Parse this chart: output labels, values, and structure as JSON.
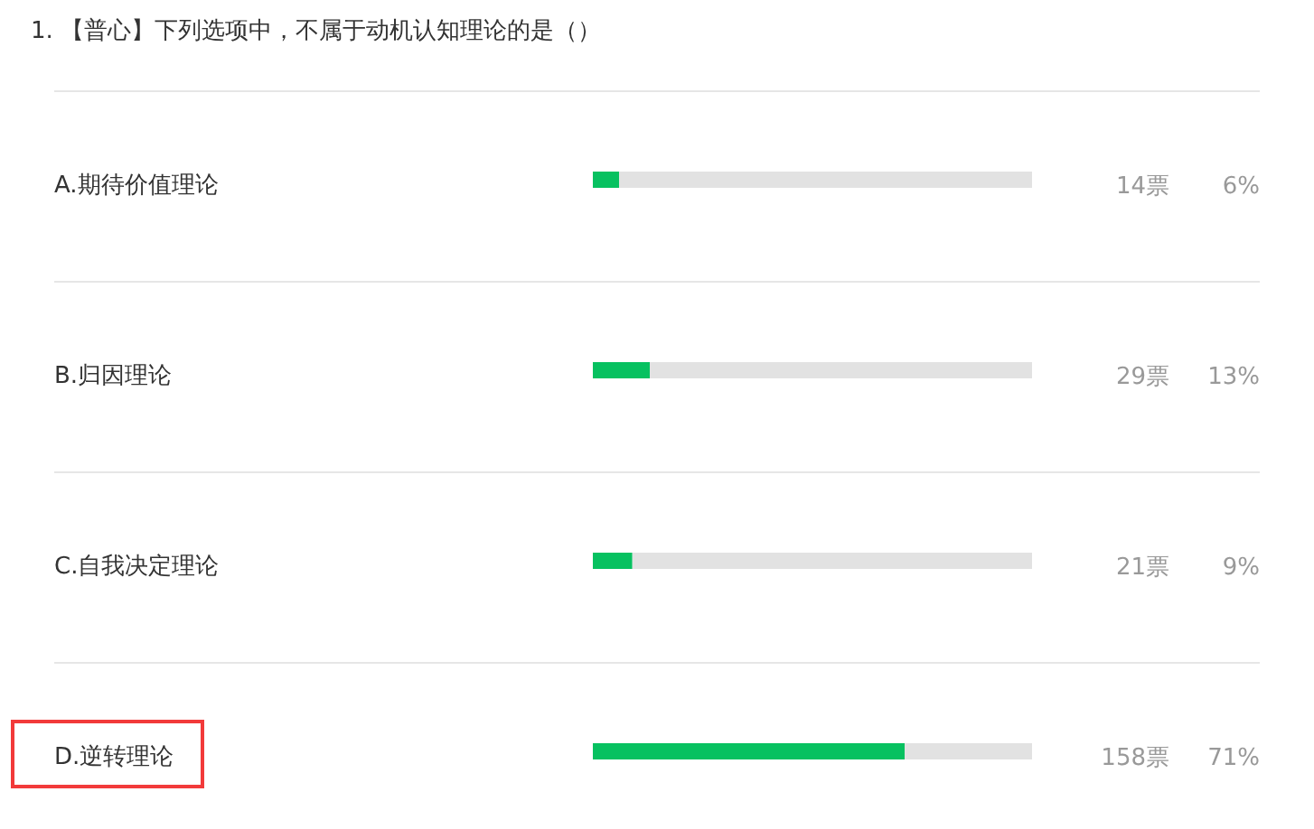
{
  "chart_data": {
    "type": "bar",
    "orientation": "horizontal",
    "stacked": true,
    "title": "1. 【普心】下列选项中，不属于动机认知理论的是（）",
    "categories": [
      "A.期待价值理论",
      "B.归因理论",
      "C.自我决定理论",
      "D.逆转理论"
    ],
    "series": [
      {
        "color": "#07c160",
        "values": [
          6,
          13,
          9,
          71
        ],
        "value_labels": [
          "6%",
          "13%",
          "9%",
          "71%"
        ]
      },
      {
        "color": "#e2e2e2",
        "values": [
          94,
          87,
          91,
          29
        ]
      }
    ],
    "xlim": [
      0,
      100
    ],
    "annotations": [
      "14票",
      "29票",
      "21票",
      "158票"
    ]
  }
}
